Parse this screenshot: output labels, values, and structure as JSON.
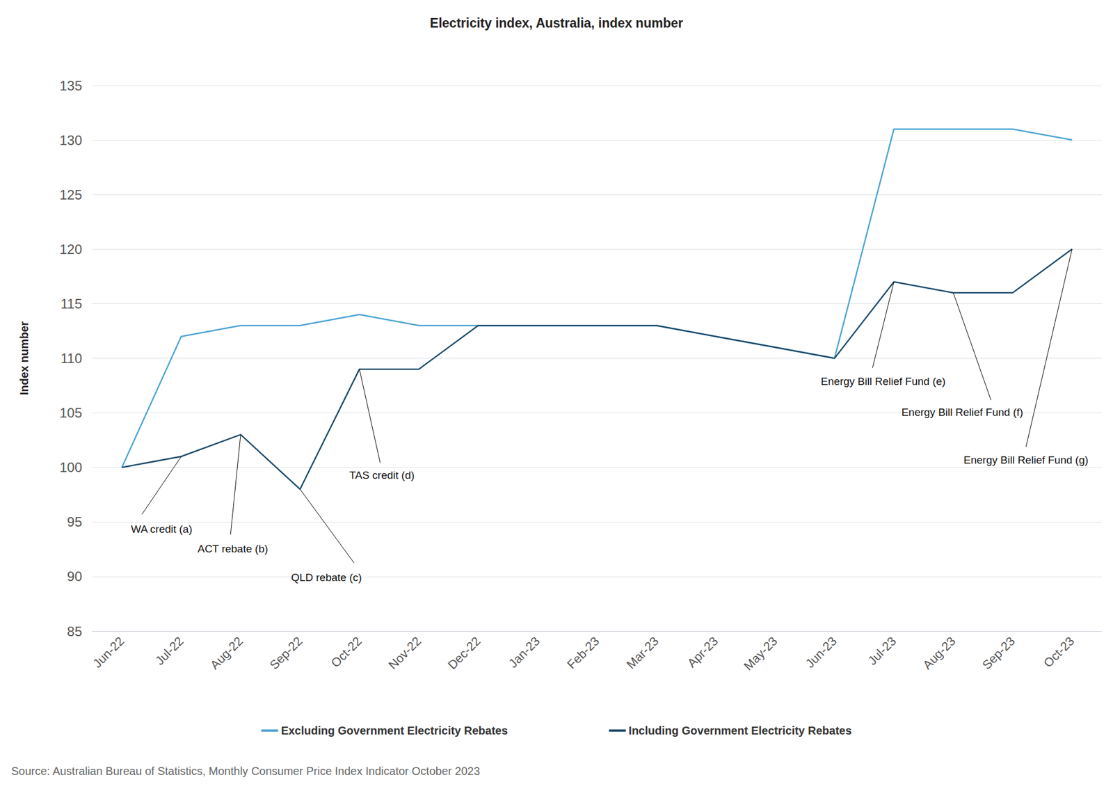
{
  "chart_data": {
    "type": "line",
    "title": "Electricity index, Australia, index number",
    "y_label": "Index number",
    "source": "Source: Australian Bureau of Statistics, Monthly Consumer Price Index Indicator October 2023",
    "categories": [
      "Jun-22",
      "Jul-22",
      "Aug-22",
      "Sep-22",
      "Oct-22",
      "Nov-22",
      "Dec-22",
      "Jan-23",
      "Feb-23",
      "Mar-23",
      "Apr-23",
      "May-23",
      "Jun-23",
      "Jul-23",
      "Aug-23",
      "Sep-23",
      "Oct-23"
    ],
    "series": [
      {
        "name": "Excluding Government Electricity Rebates",
        "color": "#4ba3d3",
        "values": [
          100,
          112,
          113,
          113,
          114,
          113,
          113,
          113,
          113,
          113,
          112,
          111,
          110,
          131,
          131,
          131,
          130
        ]
      },
      {
        "name": "Including Government Electricity Rebates",
        "color": "#1b4a6b",
        "values": [
          100,
          101,
          103,
          98,
          109,
          109,
          113,
          113,
          113,
          113,
          112,
          111,
          110,
          117,
          116,
          116,
          120
        ]
      }
    ],
    "annotations": [
      {
        "text": "WA credit (a)",
        "x": "Jul-22",
        "series": "Including Government Electricity Rebates"
      },
      {
        "text": "ACT rebate (b)",
        "x": "Aug-22",
        "series": "Including Government Electricity Rebates"
      },
      {
        "text": "QLD rebate (c)",
        "x": "Sep-22",
        "series": "Including Government Electricity Rebates"
      },
      {
        "text": "TAS credit (d)",
        "x": "Oct-22",
        "series": "Including Government Electricity Rebates"
      },
      {
        "text": "Energy Bill Relief Fund (e)",
        "x": "Jul-23",
        "series": "Including Government Electricity Rebates"
      },
      {
        "text": "Energy Bill Relief Fund (f)",
        "x": "Aug-23",
        "series": "Including Government Electricity Rebates"
      },
      {
        "text": "Energy Bill Relief Fund (g)",
        "x": "Oct-23",
        "series": "Including Government Electricity Rebates"
      }
    ],
    "ylim": [
      85,
      135
    ],
    "yticks": [
      85,
      90,
      95,
      100,
      105,
      110,
      115,
      120,
      125,
      130,
      135
    ],
    "grid": true,
    "legend": "bottom"
  }
}
